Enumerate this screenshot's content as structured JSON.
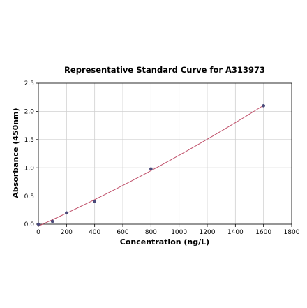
{
  "chart_data": {
    "type": "scatter",
    "title": "Representative Standard Curve for A313973",
    "xlabel": "Concentration (ng/L)",
    "ylabel": "Absorbance (450nm)",
    "xlim": [
      0,
      1800
    ],
    "ylim": [
      0,
      2.5
    ],
    "xticks": [
      0,
      200,
      400,
      600,
      800,
      1000,
      1200,
      1400,
      1600,
      1800
    ],
    "yticks": [
      0.0,
      0.5,
      1.0,
      1.5,
      2.0,
      2.5
    ],
    "ytick_labels": [
      "0.0",
      "0.5",
      "1.0",
      "1.5",
      "2.0",
      "2.5"
    ],
    "grid": true,
    "series": [
      {
        "type": "scatter",
        "x": [
          0,
          100,
          200,
          400,
          800,
          1600
        ],
        "y": [
          0.0,
          0.05,
          0.2,
          0.4,
          0.98,
          2.1
        ],
        "color": "#4a4a7a"
      },
      {
        "type": "fit-line",
        "x": [
          0,
          1600
        ],
        "color": "#c0506a"
      }
    ]
  }
}
